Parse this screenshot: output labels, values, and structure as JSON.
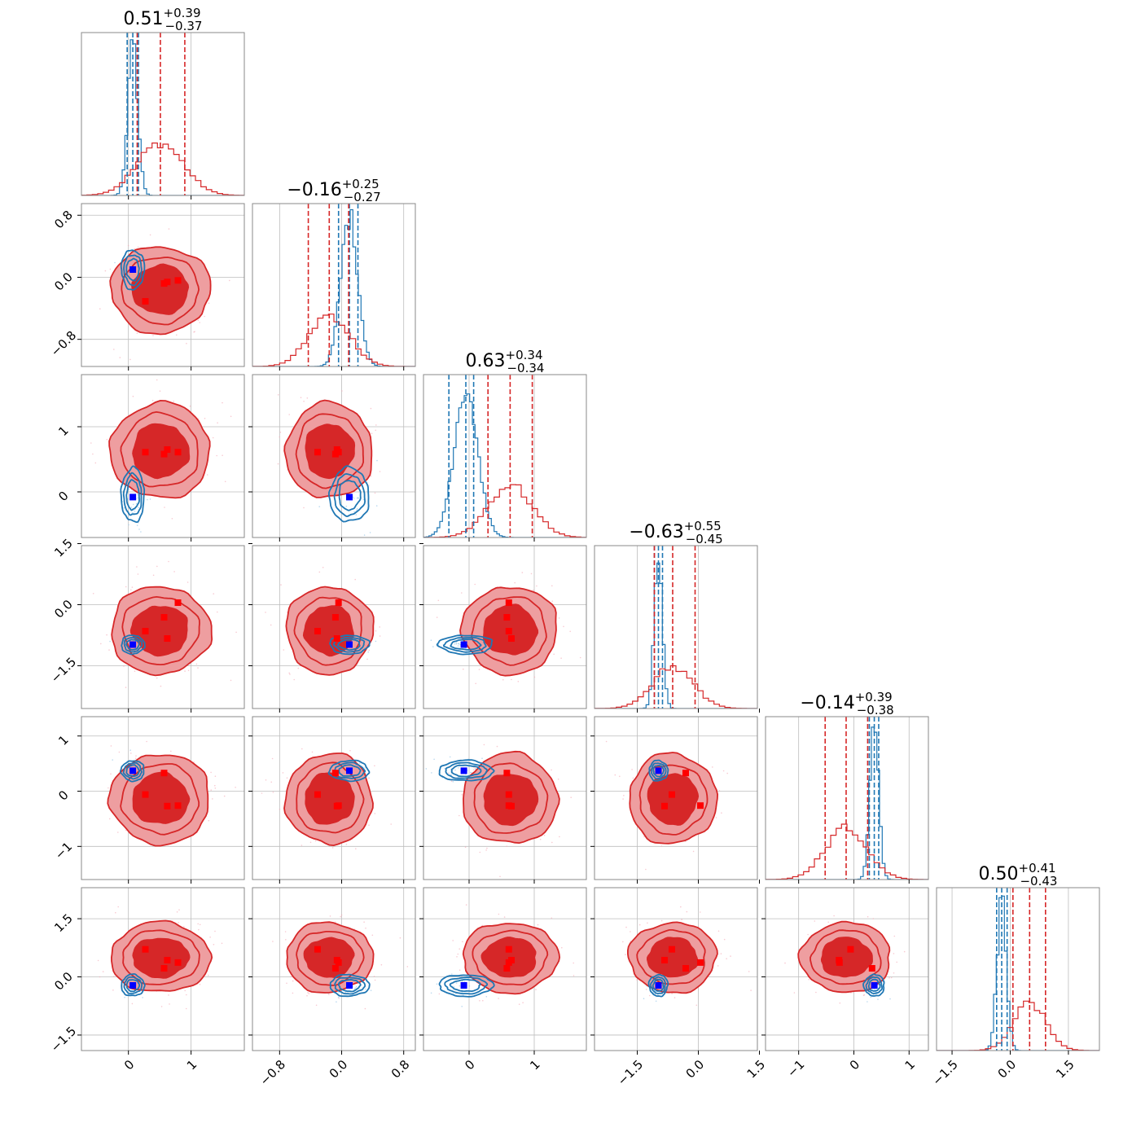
{
  "chart_data": {
    "type": "corner",
    "n_params": 6,
    "colors": {
      "red": "#d62728",
      "red_light": "#ee9ea0",
      "blue": "#1f77b4",
      "truth_blue": "#0000ff",
      "truth_red": "#ff0000",
      "grid": "#bdbdbd",
      "axes": "#888888"
    },
    "titles": [
      {
        "value": "0.51",
        "plus": "+0.39",
        "minus": "−0.37"
      },
      {
        "value": "−0.16",
        "plus": "+0.25",
        "minus": "−0.27"
      },
      {
        "value": "0.63",
        "plus": "+0.34",
        "minus": "−0.34"
      },
      {
        "value": "−0.63",
        "plus": "+0.55",
        "minus": "−0.45"
      },
      {
        "value": "−0.14",
        "plus": "+0.39",
        "minus": "−0.38"
      },
      {
        "value": "0.50",
        "plus": "+0.41",
        "minus": "−0.43"
      }
    ],
    "ranges": [
      [
        -0.75,
        1.85
      ],
      [
        -1.15,
        0.95
      ],
      [
        -0.7,
        1.8
      ],
      [
        -2.55,
        1.45
      ],
      [
        -1.6,
        1.35
      ],
      [
        -1.9,
        2.3
      ]
    ],
    "ticks": [
      {
        "values": [
          0,
          1
        ],
        "labels": [
          "0",
          "1"
        ]
      },
      {
        "values": [
          -0.8,
          0.0,
          0.8
        ],
        "labels": [
          "−0.8",
          "0.0",
          "0.8"
        ]
      },
      {
        "values": [
          0,
          1
        ],
        "labels": [
          "0",
          "1"
        ]
      },
      {
        "values": [
          -1.5,
          0.0,
          1.5
        ],
        "labels": [
          "−1.5",
          "0.0",
          "1.5"
        ]
      },
      {
        "values": [
          -1,
          0,
          1
        ],
        "labels": [
          "−1",
          "0",
          "1"
        ]
      },
      {
        "values": [
          -1.5,
          0.0,
          1.5
        ],
        "labels": [
          "−1.5",
          "0.0",
          "1.5"
        ]
      }
    ],
    "red_quantiles": [
      [
        0.14,
        0.51,
        0.9
      ],
      [
        -0.43,
        -0.16,
        0.09
      ],
      [
        0.29,
        0.63,
        0.97
      ],
      [
        -1.08,
        -0.63,
        -0.08
      ],
      [
        -0.52,
        -0.14,
        0.25
      ],
      [
        0.07,
        0.5,
        0.91
      ]
    ],
    "blue_quantiles": [
      [
        -0.02,
        0.07,
        0.16
      ],
      [
        -0.04,
        0.1,
        0.21
      ],
      [
        -0.31,
        -0.05,
        0.07
      ],
      [
        -1.08,
        -0.98,
        -0.88
      ],
      [
        0.28,
        0.37,
        0.45
      ],
      [
        -0.35,
        -0.22,
        -0.08
      ]
    ],
    "red_posterior": {
      "mean": [
        0.51,
        -0.16,
        0.63,
        -0.63,
        -0.14,
        0.5
      ],
      "sigma": [
        0.37,
        0.26,
        0.34,
        0.5,
        0.38,
        0.42
      ]
    },
    "blue_posterior": {
      "mean": [
        0.07,
        0.1,
        -0.05,
        -0.98,
        0.37,
        -0.22
      ],
      "sigma": [
        0.08,
        0.11,
        0.18,
        0.1,
        0.08,
        0.12
      ]
    },
    "blue_truth": [
      0.07,
      0.1,
      -0.08,
      -0.98,
      0.37,
      -0.22
    ],
    "red_points": [
      [
        0.27,
        -0.31,
        0.61,
        -0.65,
        -0.06,
        0.71
      ],
      [
        0.57,
        -0.08,
        0.58,
        -0.31,
        0.33,
        0.22
      ],
      [
        0.62,
        -0.06,
        0.65,
        -0.83,
        -0.27,
        0.43
      ],
      [
        0.79,
        -0.04,
        0.61,
        0.05,
        -0.26,
        0.37
      ]
    ]
  }
}
